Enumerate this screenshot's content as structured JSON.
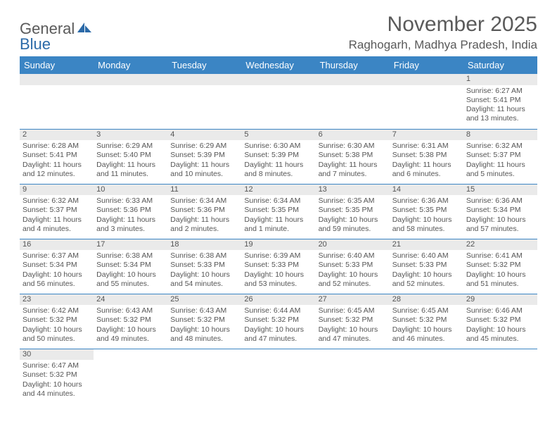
{
  "logo": {
    "text_part1": "General",
    "text_part2": "Blue"
  },
  "title": "November 2025",
  "location": "Raghogarh, Madhya Pradesh, India",
  "colors": {
    "header_bg": "#3b85c4",
    "header_text": "#ffffff",
    "daynum_bg": "#eaeaea",
    "border": "#3b85c4",
    "text": "#555555",
    "title_text": "#5a5a5a"
  },
  "weekdays": [
    "Sunday",
    "Monday",
    "Tuesday",
    "Wednesday",
    "Thursday",
    "Friday",
    "Saturday"
  ],
  "weeks": [
    [
      {
        "n": "",
        "sunrise": "",
        "sunset": "",
        "daylight": ""
      },
      {
        "n": "",
        "sunrise": "",
        "sunset": "",
        "daylight": ""
      },
      {
        "n": "",
        "sunrise": "",
        "sunset": "",
        "daylight": ""
      },
      {
        "n": "",
        "sunrise": "",
        "sunset": "",
        "daylight": ""
      },
      {
        "n": "",
        "sunrise": "",
        "sunset": "",
        "daylight": ""
      },
      {
        "n": "",
        "sunrise": "",
        "sunset": "",
        "daylight": ""
      },
      {
        "n": "1",
        "sunrise": "Sunrise: 6:27 AM",
        "sunset": "Sunset: 5:41 PM",
        "daylight": "Daylight: 11 hours and 13 minutes."
      }
    ],
    [
      {
        "n": "2",
        "sunrise": "Sunrise: 6:28 AM",
        "sunset": "Sunset: 5:41 PM",
        "daylight": "Daylight: 11 hours and 12 minutes."
      },
      {
        "n": "3",
        "sunrise": "Sunrise: 6:29 AM",
        "sunset": "Sunset: 5:40 PM",
        "daylight": "Daylight: 11 hours and 11 minutes."
      },
      {
        "n": "4",
        "sunrise": "Sunrise: 6:29 AM",
        "sunset": "Sunset: 5:39 PM",
        "daylight": "Daylight: 11 hours and 10 minutes."
      },
      {
        "n": "5",
        "sunrise": "Sunrise: 6:30 AM",
        "sunset": "Sunset: 5:39 PM",
        "daylight": "Daylight: 11 hours and 8 minutes."
      },
      {
        "n": "6",
        "sunrise": "Sunrise: 6:30 AM",
        "sunset": "Sunset: 5:38 PM",
        "daylight": "Daylight: 11 hours and 7 minutes."
      },
      {
        "n": "7",
        "sunrise": "Sunrise: 6:31 AM",
        "sunset": "Sunset: 5:38 PM",
        "daylight": "Daylight: 11 hours and 6 minutes."
      },
      {
        "n": "8",
        "sunrise": "Sunrise: 6:32 AM",
        "sunset": "Sunset: 5:37 PM",
        "daylight": "Daylight: 11 hours and 5 minutes."
      }
    ],
    [
      {
        "n": "9",
        "sunrise": "Sunrise: 6:32 AM",
        "sunset": "Sunset: 5:37 PM",
        "daylight": "Daylight: 11 hours and 4 minutes."
      },
      {
        "n": "10",
        "sunrise": "Sunrise: 6:33 AM",
        "sunset": "Sunset: 5:36 PM",
        "daylight": "Daylight: 11 hours and 3 minutes."
      },
      {
        "n": "11",
        "sunrise": "Sunrise: 6:34 AM",
        "sunset": "Sunset: 5:36 PM",
        "daylight": "Daylight: 11 hours and 2 minutes."
      },
      {
        "n": "12",
        "sunrise": "Sunrise: 6:34 AM",
        "sunset": "Sunset: 5:35 PM",
        "daylight": "Daylight: 11 hours and 1 minute."
      },
      {
        "n": "13",
        "sunrise": "Sunrise: 6:35 AM",
        "sunset": "Sunset: 5:35 PM",
        "daylight": "Daylight: 10 hours and 59 minutes."
      },
      {
        "n": "14",
        "sunrise": "Sunrise: 6:36 AM",
        "sunset": "Sunset: 5:35 PM",
        "daylight": "Daylight: 10 hours and 58 minutes."
      },
      {
        "n": "15",
        "sunrise": "Sunrise: 6:36 AM",
        "sunset": "Sunset: 5:34 PM",
        "daylight": "Daylight: 10 hours and 57 minutes."
      }
    ],
    [
      {
        "n": "16",
        "sunrise": "Sunrise: 6:37 AM",
        "sunset": "Sunset: 5:34 PM",
        "daylight": "Daylight: 10 hours and 56 minutes."
      },
      {
        "n": "17",
        "sunrise": "Sunrise: 6:38 AM",
        "sunset": "Sunset: 5:34 PM",
        "daylight": "Daylight: 10 hours and 55 minutes."
      },
      {
        "n": "18",
        "sunrise": "Sunrise: 6:38 AM",
        "sunset": "Sunset: 5:33 PM",
        "daylight": "Daylight: 10 hours and 54 minutes."
      },
      {
        "n": "19",
        "sunrise": "Sunrise: 6:39 AM",
        "sunset": "Sunset: 5:33 PM",
        "daylight": "Daylight: 10 hours and 53 minutes."
      },
      {
        "n": "20",
        "sunrise": "Sunrise: 6:40 AM",
        "sunset": "Sunset: 5:33 PM",
        "daylight": "Daylight: 10 hours and 52 minutes."
      },
      {
        "n": "21",
        "sunrise": "Sunrise: 6:40 AM",
        "sunset": "Sunset: 5:33 PM",
        "daylight": "Daylight: 10 hours and 52 minutes."
      },
      {
        "n": "22",
        "sunrise": "Sunrise: 6:41 AM",
        "sunset": "Sunset: 5:32 PM",
        "daylight": "Daylight: 10 hours and 51 minutes."
      }
    ],
    [
      {
        "n": "23",
        "sunrise": "Sunrise: 6:42 AM",
        "sunset": "Sunset: 5:32 PM",
        "daylight": "Daylight: 10 hours and 50 minutes."
      },
      {
        "n": "24",
        "sunrise": "Sunrise: 6:43 AM",
        "sunset": "Sunset: 5:32 PM",
        "daylight": "Daylight: 10 hours and 49 minutes."
      },
      {
        "n": "25",
        "sunrise": "Sunrise: 6:43 AM",
        "sunset": "Sunset: 5:32 PM",
        "daylight": "Daylight: 10 hours and 48 minutes."
      },
      {
        "n": "26",
        "sunrise": "Sunrise: 6:44 AM",
        "sunset": "Sunset: 5:32 PM",
        "daylight": "Daylight: 10 hours and 47 minutes."
      },
      {
        "n": "27",
        "sunrise": "Sunrise: 6:45 AM",
        "sunset": "Sunset: 5:32 PM",
        "daylight": "Daylight: 10 hours and 47 minutes."
      },
      {
        "n": "28",
        "sunrise": "Sunrise: 6:45 AM",
        "sunset": "Sunset: 5:32 PM",
        "daylight": "Daylight: 10 hours and 46 minutes."
      },
      {
        "n": "29",
        "sunrise": "Sunrise: 6:46 AM",
        "sunset": "Sunset: 5:32 PM",
        "daylight": "Daylight: 10 hours and 45 minutes."
      }
    ],
    [
      {
        "n": "30",
        "sunrise": "Sunrise: 6:47 AM",
        "sunset": "Sunset: 5:32 PM",
        "daylight": "Daylight: 10 hours and 44 minutes."
      },
      {
        "n": "",
        "sunrise": "",
        "sunset": "",
        "daylight": ""
      },
      {
        "n": "",
        "sunrise": "",
        "sunset": "",
        "daylight": ""
      },
      {
        "n": "",
        "sunrise": "",
        "sunset": "",
        "daylight": ""
      },
      {
        "n": "",
        "sunrise": "",
        "sunset": "",
        "daylight": ""
      },
      {
        "n": "",
        "sunrise": "",
        "sunset": "",
        "daylight": ""
      },
      {
        "n": "",
        "sunrise": "",
        "sunset": "",
        "daylight": ""
      }
    ]
  ]
}
